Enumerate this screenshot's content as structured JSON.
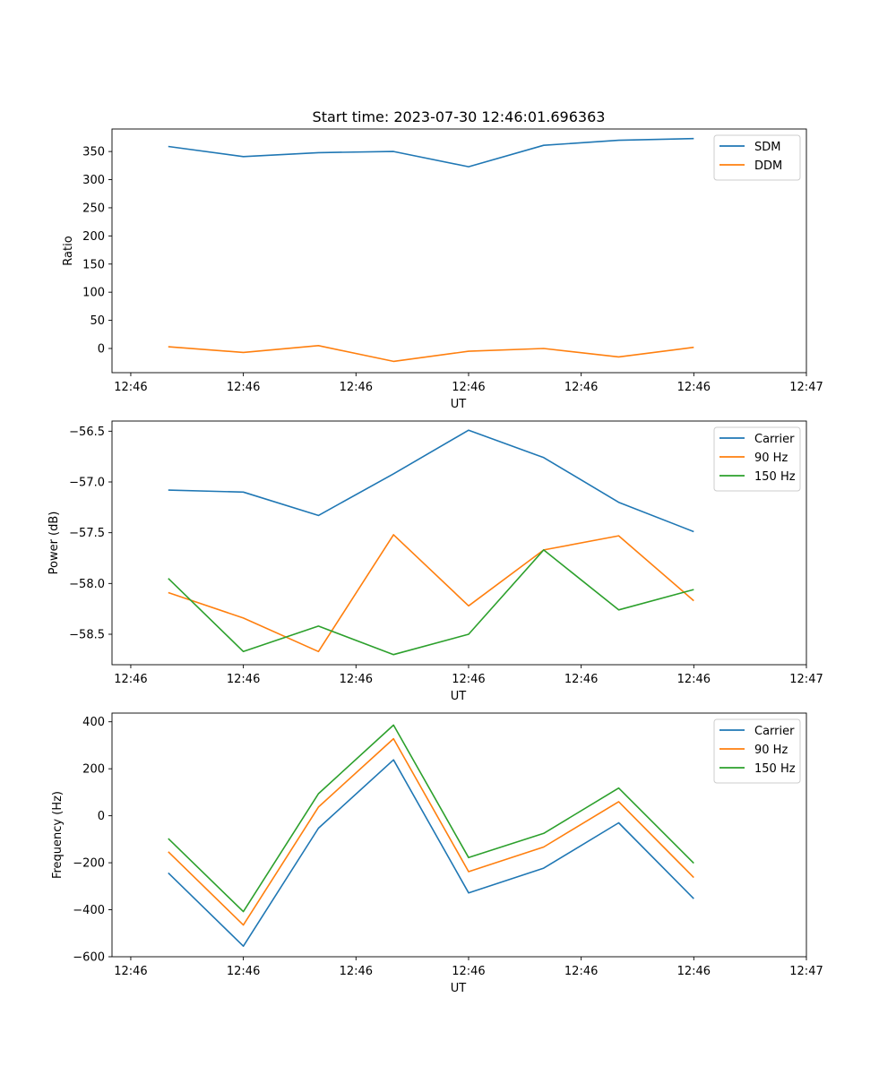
{
  "figure_title": "Start time: 2023-07-30 12:46:01.696363",
  "colors": {
    "blue": "#1f77b4",
    "orange": "#ff7f0e",
    "green": "#2ca02c"
  },
  "chart_data": [
    {
      "type": "line",
      "title": "Start time: 2023-07-30 12:46:01.696363",
      "xlabel": "UT",
      "ylabel": "Ratio",
      "x_ticks": [
        "12:46",
        "12:46",
        "12:46",
        "12:46",
        "12:46",
        "12:46",
        "12:47"
      ],
      "x_tick_positions": [
        -0.5,
        1,
        2.5,
        4,
        5.5,
        7,
        8.5
      ],
      "xlim": [
        -0.75,
        8.5
      ],
      "ylim": [
        -43,
        390
      ],
      "y_ticks": [
        0,
        50,
        100,
        150,
        200,
        250,
        300,
        350
      ],
      "y_tick_labels": [
        "0",
        "50",
        "100",
        "150",
        "200",
        "250",
        "300",
        "350"
      ],
      "legend": "top-right",
      "x": [
        0,
        1,
        2,
        3,
        4,
        5,
        6,
        7
      ],
      "series": [
        {
          "name": "SDM",
          "color": "#1f77b4",
          "values": [
            359,
            341,
            348,
            350,
            323,
            361,
            370,
            373
          ]
        },
        {
          "name": "DDM",
          "color": "#ff7f0e",
          "values": [
            3,
            -7,
            5,
            -23,
            -5,
            0,
            -15,
            2
          ]
        }
      ]
    },
    {
      "type": "line",
      "title": "",
      "xlabel": "UT",
      "ylabel": "Power (dB)",
      "x_ticks": [
        "12:46",
        "12:46",
        "12:46",
        "12:46",
        "12:46",
        "12:46",
        "12:47"
      ],
      "x_tick_positions": [
        -0.5,
        1,
        2.5,
        4,
        5.5,
        7,
        8.5
      ],
      "xlim": [
        -0.75,
        8.5
      ],
      "ylim": [
        -58.8,
        -56.4
      ],
      "y_ticks": [
        -58.5,
        -58.0,
        -57.5,
        -57.0,
        -56.5
      ],
      "y_tick_labels": [
        "−58.5",
        "−58.0",
        "−57.5",
        "−57.0",
        "−56.5"
      ],
      "legend": "top-right",
      "x": [
        0,
        1,
        2,
        3,
        4,
        5,
        6,
        7
      ],
      "series": [
        {
          "name": "Carrier",
          "color": "#1f77b4",
          "values": [
            -57.08,
            -57.1,
            -57.33,
            -56.92,
            -56.49,
            -56.76,
            -57.2,
            -57.49
          ]
        },
        {
          "name": "90 Hz",
          "color": "#ff7f0e",
          "values": [
            -58.09,
            -58.34,
            -58.67,
            -57.52,
            -58.22,
            -57.67,
            -57.53,
            -58.17
          ]
        },
        {
          "name": "150 Hz",
          "color": "#2ca02c",
          "values": [
            -57.95,
            -58.67,
            -58.42,
            -58.7,
            -58.5,
            -57.67,
            -58.26,
            -58.06
          ]
        }
      ]
    },
    {
      "type": "line",
      "title": "",
      "xlabel": "UT",
      "ylabel": "Frequency (Hz)",
      "x_ticks": [
        "12:46",
        "12:46",
        "12:46",
        "12:46",
        "12:46",
        "12:46",
        "12:47"
      ],
      "x_tick_positions": [
        -0.5,
        1,
        2.5,
        4,
        5.5,
        7,
        8.5
      ],
      "xlim": [
        -0.75,
        8.5
      ],
      "ylim": [
        -600,
        437
      ],
      "y_ticks": [
        -600,
        -400,
        -200,
        0,
        200,
        400
      ],
      "y_tick_labels": [
        "−600",
        "−400",
        "−200",
        "0",
        "200",
        "400"
      ],
      "legend": "top-right",
      "x": [
        0,
        1,
        2,
        3,
        4,
        5,
        6,
        7
      ],
      "series": [
        {
          "name": "Carrier",
          "color": "#1f77b4",
          "values": [
            -243,
            -555,
            -53,
            238,
            -328,
            -223,
            -30,
            -353
          ]
        },
        {
          "name": "90 Hz",
          "color": "#ff7f0e",
          "values": [
            -153,
            -465,
            37,
            328,
            -238,
            -133,
            60,
            -263
          ]
        },
        {
          "name": "150 Hz",
          "color": "#2ca02c",
          "values": [
            -97,
            -408,
            94,
            386,
            -178,
            -75,
            118,
            -202
          ]
        }
      ]
    }
  ]
}
